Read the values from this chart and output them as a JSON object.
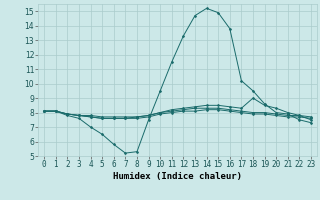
{
  "xlabel": "Humidex (Indice chaleur)",
  "ylabel": "",
  "xlim": [
    -0.5,
    23.5
  ],
  "ylim": [
    5,
    15.5
  ],
  "yticks": [
    5,
    6,
    7,
    8,
    9,
    10,
    11,
    12,
    13,
    14,
    15
  ],
  "xtick_labels": [
    "0",
    "1",
    "2",
    "3",
    "4",
    "5",
    "6",
    "7",
    "8",
    "9",
    "10",
    "11",
    "12",
    "13",
    "14",
    "15",
    "16",
    "17",
    "18",
    "19",
    "20",
    "21",
    "22",
    "23"
  ],
  "xticks": [
    0,
    1,
    2,
    3,
    4,
    5,
    6,
    7,
    8,
    9,
    10,
    11,
    12,
    13,
    14,
    15,
    16,
    17,
    18,
    19,
    20,
    21,
    22,
    23
  ],
  "background_color": "#cce8e8",
  "grid_color": "#aacccc",
  "line_color": "#1a6b6b",
  "lines": [
    {
      "x": [
        0,
        1,
        2,
        3,
        4,
        5,
        6,
        7,
        8,
        9,
        10,
        11,
        12,
        13,
        14,
        15,
        16,
        17,
        18,
        19,
        20,
        21,
        22,
        23
      ],
      "y": [
        8.1,
        8.1,
        7.8,
        7.6,
        7.0,
        6.5,
        5.8,
        5.2,
        5.3,
        7.5,
        9.5,
        11.5,
        13.3,
        14.7,
        15.2,
        14.9,
        13.8,
        10.2,
        9.5,
        8.6,
        8.0,
        7.9,
        7.5,
        7.3
      ]
    },
    {
      "x": [
        0,
        1,
        2,
        3,
        4,
        5,
        6,
        7,
        8,
        9,
        10,
        11,
        12,
        13,
        14,
        15,
        16,
        17,
        18,
        19,
        20,
        21,
        22,
        23
      ],
      "y": [
        8.1,
        8.1,
        7.9,
        7.8,
        7.7,
        7.6,
        7.6,
        7.6,
        7.7,
        7.8,
        8.0,
        8.1,
        8.2,
        8.3,
        8.3,
        8.3,
        8.2,
        8.1,
        8.0,
        8.0,
        7.9,
        7.8,
        7.8,
        7.7
      ]
    },
    {
      "x": [
        0,
        1,
        2,
        3,
        4,
        5,
        6,
        7,
        8,
        9,
        10,
        11,
        12,
        13,
        14,
        15,
        16,
        17,
        18,
        19,
        20,
        21,
        22,
        23
      ],
      "y": [
        8.1,
        8.1,
        7.9,
        7.8,
        7.7,
        7.6,
        7.6,
        7.6,
        7.6,
        7.7,
        7.9,
        8.0,
        8.1,
        8.1,
        8.2,
        8.2,
        8.1,
        8.0,
        7.9,
        7.9,
        7.8,
        7.7,
        7.7,
        7.6
      ]
    },
    {
      "x": [
        0,
        1,
        2,
        3,
        4,
        5,
        6,
        7,
        8,
        9,
        10,
        11,
        12,
        13,
        14,
        15,
        16,
        17,
        18,
        19,
        20,
        21,
        22,
        23
      ],
      "y": [
        8.1,
        8.1,
        7.9,
        7.8,
        7.8,
        7.7,
        7.7,
        7.7,
        7.7,
        7.8,
        8.0,
        8.2,
        8.3,
        8.4,
        8.5,
        8.5,
        8.4,
        8.3,
        9.0,
        8.5,
        8.3,
        8.0,
        7.8,
        7.5
      ]
    }
  ],
  "tick_fontsize": 5.5,
  "xlabel_fontsize": 6.5,
  "xlabel_fontweight": "bold"
}
